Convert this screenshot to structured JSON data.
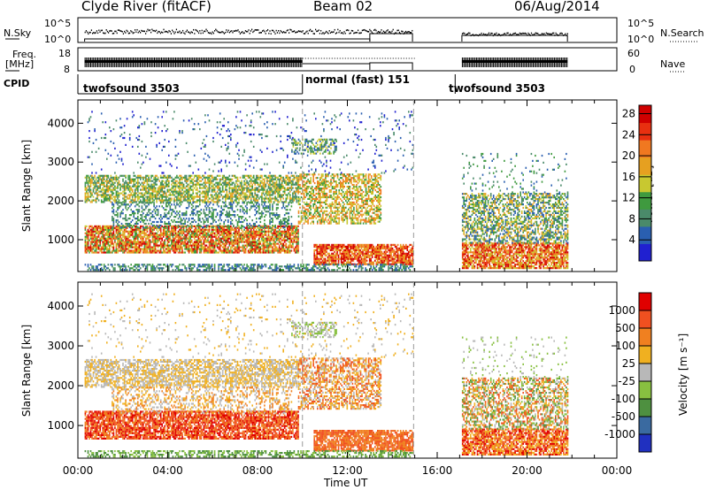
{
  "header": {
    "title": "Clyde River (fitACF)",
    "beam": "Beam 02",
    "date": "06/Aug/2014"
  },
  "strip_panels": {
    "nsky_label": "N.Sky",
    "nsky_ticks": [
      "10^5",
      "10^0"
    ],
    "nsearch_label": "N.Search",
    "nsearch_ticks": [
      "10^5",
      "10^0"
    ],
    "freq_label_1": "Freq.",
    "freq_label_2": "[MHz]",
    "freq_ticks": [
      "18",
      "8"
    ],
    "nave_label": "Nave",
    "nave_ticks": [
      "60",
      "0"
    ],
    "cpid_label": "CPID",
    "cpid_segments": [
      {
        "name": "twofsound 3503",
        "start_hour": 0,
        "end_hour": 10
      },
      {
        "name": "normal (fast) 151",
        "start_hour": 10,
        "end_hour": 16.8
      },
      {
        "name": "twofsound 3503",
        "start_hour": 16.8,
        "end_hour": 24
      }
    ]
  },
  "chart_data": [
    {
      "type": "heatmap",
      "parameter": "Power",
      "ylabel": "Slant Range [km]",
      "ylim": [
        180,
        4600
      ],
      "y_ticks": [
        "1000",
        "2000",
        "3000",
        "4000"
      ],
      "xlim_hours": [
        0,
        24
      ],
      "colorbar_label": "Power [dB]",
      "colorbar_ticks": [
        "4",
        "8",
        "12",
        "16",
        "20",
        "24",
        "28"
      ],
      "colorbar_range": [
        0,
        30
      ],
      "data_gaps_hours": [
        [
          15,
          16.8
        ],
        [
          21.8,
          24
        ]
      ]
    },
    {
      "type": "heatmap",
      "parameter": "Velocity",
      "ylabel": "Slant Range [km]",
      "ylim": [
        180,
        4600
      ],
      "y_ticks": [
        "1000",
        "2000",
        "3000",
        "4000"
      ],
      "xlim_hours": [
        0,
        24
      ],
      "xlabel": "Time UT",
      "x_ticks": [
        "00:00",
        "04:00",
        "08:00",
        "12:00",
        "16:00",
        "20:00",
        "00:00"
      ],
      "colorbar_label": "Velocity [m s⁻¹]",
      "colorbar_ticks": [
        "1000",
        "500",
        "100",
        "25",
        "-25",
        "-100",
        "-500",
        "-1000"
      ],
      "data_gaps_hours": [
        [
          15,
          16.8
        ],
        [
          21.8,
          24
        ]
      ]
    }
  ],
  "colors": {
    "power_scale": [
      "#2020d0",
      "#2a5fb0",
      "#4a8a6a",
      "#3f9a3f",
      "#c8c830",
      "#e6a020",
      "#f07820",
      "#e83010",
      "#d00000"
    ],
    "velocity_scale": [
      "#2030c0",
      "#3a6aa0",
      "#4e9040",
      "#88c040",
      "#b8b8b8",
      "#f0b020",
      "#f08020",
      "#f05020",
      "#e00000"
    ]
  }
}
